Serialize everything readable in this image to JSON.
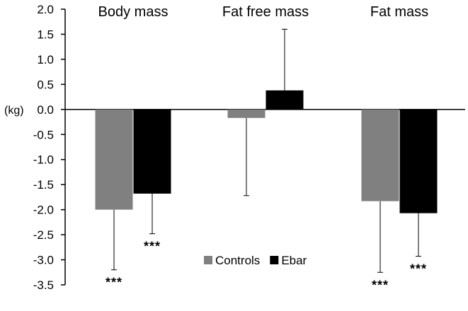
{
  "chart_data": {
    "type": "bar",
    "categories": [
      "Body mass",
      "Fat free mass",
      "Fat mass"
    ],
    "ylabel": "(kg)",
    "ylim": [
      -3.5,
      2.0
    ],
    "yticks": [
      "2.0",
      "1.5",
      "1.0",
      "0.5",
      "0.0",
      "-0.5",
      "-1.0",
      "-1.5",
      "-2.0",
      "-2.5",
      "-3.0",
      "-3.5"
    ],
    "grid": false,
    "legend_position": "bottom-center",
    "series": [
      {
        "name": "Controls",
        "color": "#808080",
        "values": [
          -2.0,
          -0.17,
          -1.83
        ],
        "error": [
          1.2,
          1.55,
          1.42
        ],
        "significance": [
          "***",
          "",
          "***"
        ]
      },
      {
        "name": "Ebar",
        "color": "#000000",
        "values": [
          -1.68,
          0.38,
          -2.07
        ],
        "error": [
          0.8,
          1.22,
          0.86
        ],
        "significance": [
          "***",
          "",
          "***"
        ]
      }
    ]
  }
}
